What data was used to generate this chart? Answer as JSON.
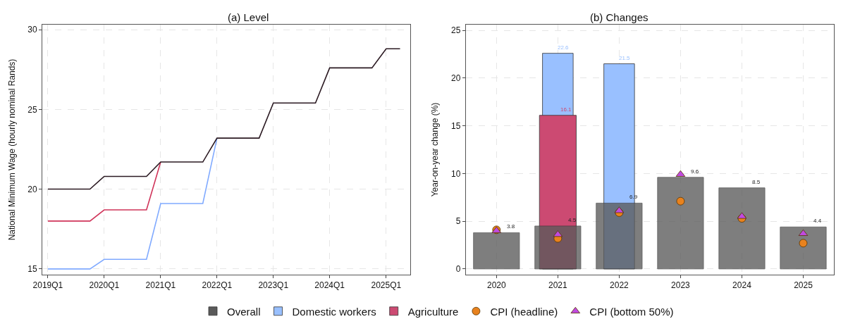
{
  "chart_data": [
    {
      "type": "line",
      "title": "(a) Level",
      "ylabel": "National Minimum Wage (hourly nominal Rands)",
      "x": [
        "2019-01",
        "2019-04",
        "2019-07",
        "2019-10",
        "2020-01",
        "2020-04",
        "2020-07",
        "2020-10",
        "2021-01",
        "2021-04",
        "2021-07",
        "2021-10",
        "2022-01",
        "2022-04",
        "2022-07",
        "2022-10",
        "2023-01",
        "2023-04",
        "2023-07",
        "2023-10",
        "2024-01",
        "2024-04",
        "2024-07",
        "2024-10",
        "2025-01",
        "2025-04"
      ],
      "series": [
        {
          "color": "#80aaff",
          "values": [
            15.0,
            15.0,
            15.0,
            15.0,
            15.6,
            15.6,
            15.6,
            15.6,
            19.1,
            19.1,
            19.1,
            19.1,
            23.2,
            null,
            null,
            null,
            null,
            null,
            null,
            null,
            null,
            null,
            null,
            null,
            null,
            null
          ]
        },
        {
          "color": "#d0345a",
          "values": [
            18.0,
            18.0,
            18.0,
            18.0,
            18.7,
            18.7,
            18.7,
            18.7,
            21.7,
            null,
            null,
            null,
            null,
            null,
            null,
            null,
            null,
            null,
            null,
            null,
            null,
            null,
            null,
            null,
            null,
            null
          ]
        },
        {
          "color": "#2b1a22",
          "values": [
            20.0,
            20.0,
            20.0,
            20.0,
            20.8,
            20.8,
            20.8,
            20.8,
            21.7,
            21.7,
            21.7,
            21.7,
            23.2,
            23.2,
            23.2,
            23.2,
            25.4,
            25.4,
            25.4,
            25.4,
            27.6,
            27.6,
            27.6,
            27.6,
            28.8,
            28.8
          ]
        }
      ],
      "xlim": [
        "2018-11-26",
        "2025-06-07"
      ],
      "xticks": [
        {
          "value": "2019-01",
          "label": "2019Q1"
        },
        {
          "value": "2020-01",
          "label": "2020Q1"
        },
        {
          "value": "2021-01",
          "label": "2021Q1"
        },
        {
          "value": "2022-01",
          "label": "2022Q1"
        },
        {
          "value": "2023-01",
          "label": "2023Q1"
        },
        {
          "value": "2024-01",
          "label": "2024Q1"
        },
        {
          "value": "2025-01",
          "label": "2025Q1"
        }
      ],
      "ylim": [
        14.64,
        30.31
      ],
      "yticks": [
        15,
        20,
        25,
        30
      ],
      "grid": true,
      "line_style": "solid"
    },
    {
      "type": "bar",
      "title": "(b) Changes",
      "ylabel": "Year-on-year change (%)",
      "categories": [
        "2020",
        "2021",
        "2022",
        "2023",
        "2024",
        "2025"
      ],
      "series": [
        {
          "name": "Domestic workers",
          "color": "#99c0ff",
          "values": [
            null,
            22.6,
            21.5,
            null,
            null,
            null
          ],
          "value_labels": [
            null,
            "22.6",
            "21.5",
            null,
            null,
            null
          ]
        },
        {
          "name": "Agriculture",
          "color": "#cc4a72",
          "values": [
            null,
            16.1,
            null,
            null,
            null,
            null
          ],
          "value_labels": [
            null,
            "16.1",
            null,
            null,
            null,
            null
          ]
        },
        {
          "name": "Overall",
          "color": "#5a5a5a",
          "values": [
            3.8,
            4.5,
            6.9,
            9.6,
            8.5,
            4.4
          ],
          "value_labels": [
            "3.8",
            "4.5",
            "6.9",
            "9.6",
            "8.5",
            "4.4"
          ]
        },
        {
          "name": "CPI (headline)",
          "type": "scatter",
          "marker": "circle",
          "color": "#e8821e",
          "values": [
            4.1,
            3.2,
            5.9,
            7.1,
            5.3,
            2.7
          ]
        },
        {
          "name": "CPI (bottom 50%)",
          "type": "scatter",
          "marker": "triangle",
          "color": "#c04ae0",
          "values": [
            4.0,
            3.6,
            6.1,
            9.9,
            5.5,
            3.7
          ]
        }
      ],
      "ylim": [
        -0.6,
        25.6
      ],
      "yticks": [
        0,
        5,
        10,
        15,
        20,
        25
      ],
      "grid": true,
      "legend": "bottom"
    }
  ]
}
